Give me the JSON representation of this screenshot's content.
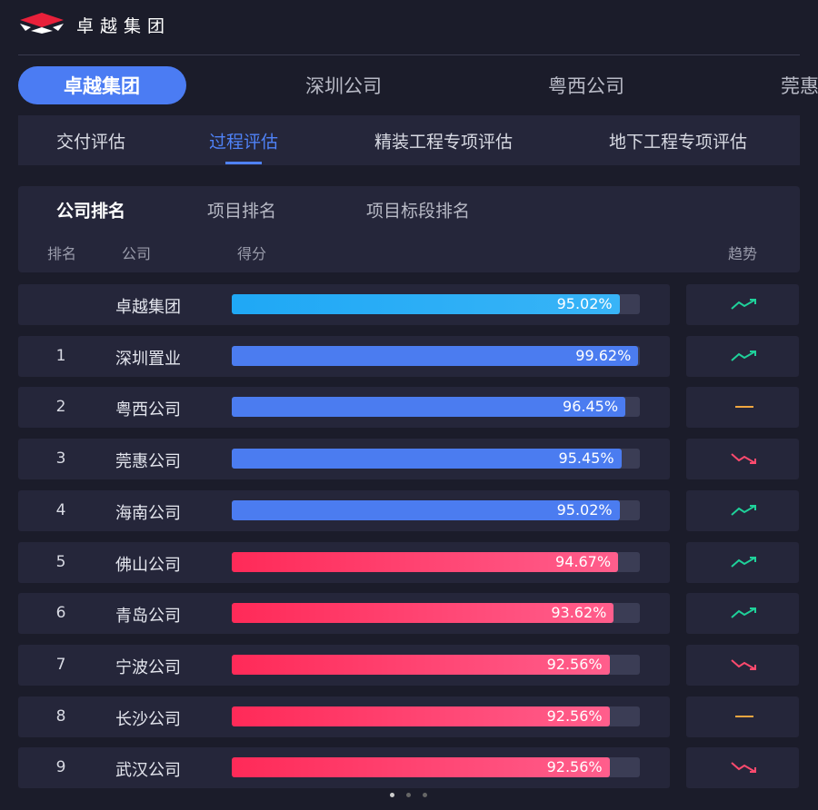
{
  "header": {
    "brand": "卓越集团"
  },
  "company_tabs": [
    "卓越集团",
    "深圳公司",
    "粤西公司",
    "莞惠"
  ],
  "eval_tabs": [
    "交付评估",
    "过程评估",
    "精装工程专项评估",
    "地下工程专项评估"
  ],
  "rank_tabs": [
    "公司排名",
    "项目排名",
    "项目标段排名"
  ],
  "columns": [
    "排名",
    "公司",
    "得分",
    "趋势"
  ],
  "rows": [
    {
      "rank": null,
      "company": "卓越集团",
      "score": "95.02%"
    },
    {
      "rank": 1,
      "company": "深圳置业",
      "score": "99.62%"
    },
    {
      "rank": 2,
      "company": "粤西公司",
      "score": "96.45%"
    },
    {
      "rank": 3,
      "company": "莞惠公司",
      "score": "95.45%"
    },
    {
      "rank": 4,
      "company": "海南公司",
      "score": "95.02%"
    },
    {
      "rank": 5,
      "company": "佛山公司",
      "score": "94.67%"
    },
    {
      "rank": 6,
      "company": "青岛公司",
      "score": "93.62%"
    },
    {
      "rank": 7,
      "company": "宁波公司",
      "score": "92.56%"
    },
    {
      "rank": 8,
      "company": "长沙公司",
      "score": "92.56%"
    },
    {
      "rank": 9,
      "company": "武汉公司",
      "score": "92.56%"
    }
  ]
}
